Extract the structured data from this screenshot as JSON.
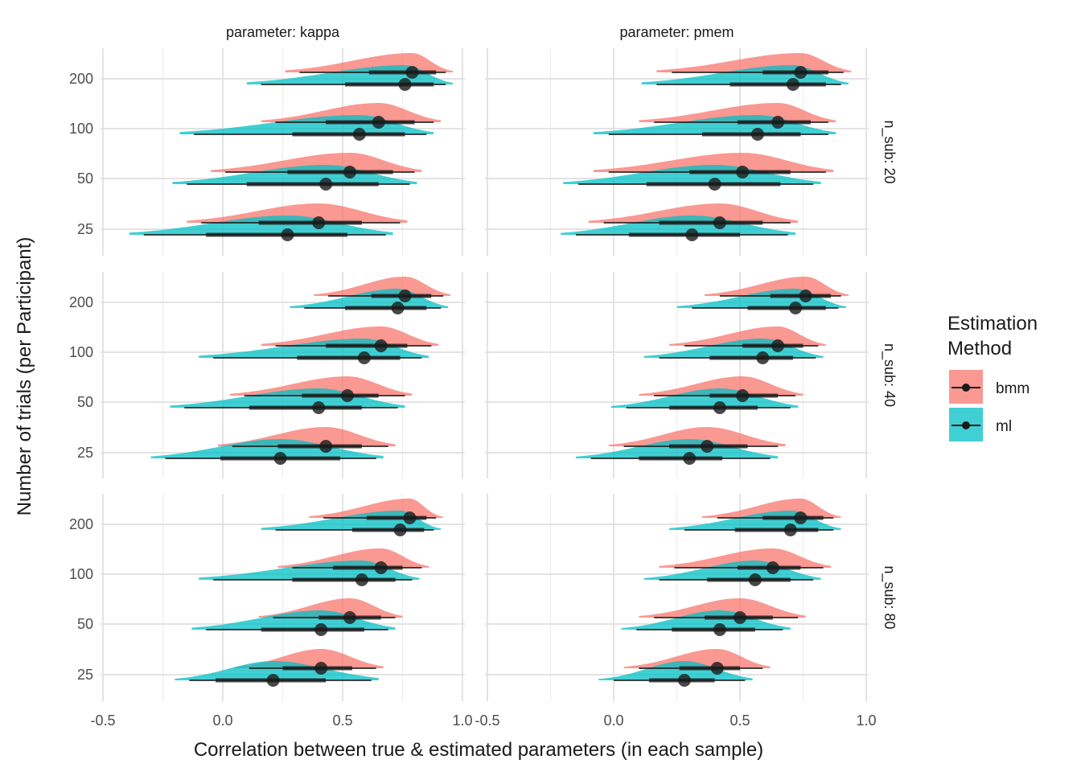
{
  "chart_data": {
    "type": "interval-density (halfeye)",
    "xlabel": "Correlation between true & estimated parameters (in each sample)",
    "ylabel": "Number of trials (per Participant)",
    "xlim": [
      -0.5,
      1.0
    ],
    "x_ticks": [
      "-0.5",
      "0.0",
      "0.5",
      "1.0"
    ],
    "x_tick_values": [
      -0.5,
      0.0,
      0.5,
      1.0
    ],
    "y_categories": [
      "200",
      "100",
      "50",
      "25"
    ],
    "facet_columns": [
      "parameter: kappa",
      "parameter: pmem"
    ],
    "facet_rows": [
      "n_sub: 20",
      "n_sub: 40",
      "n_sub: 80"
    ],
    "legend": {
      "title_lines": [
        "Estimation",
        "Method"
      ],
      "position": "right",
      "items": [
        {
          "label": "bmm",
          "color": "#F8766D"
        },
        {
          "label": "ml",
          "color": "#00BFC4"
        }
      ]
    },
    "grid": true,
    "colors": {
      "bmm": "#F8766D",
      "ml": "#00BFC4",
      "interval": "#1a1a1a",
      "grid": "#e5e5e5"
    },
    "series_summary": "Each series lists, per panel and trial count: point estimate (median) and its 66% and 95% interval in correlation units.",
    "panels": [
      {
        "column": "parameter: kappa",
        "row": "n_sub: 20",
        "rows": [
          {
            "trials": "200",
            "bmm": {
              "median": 0.79,
              "q66": [
                0.61,
                0.89
              ],
              "q95": [
                0.32,
                0.93
              ]
            },
            "ml": {
              "median": 0.76,
              "q66": [
                0.51,
                0.88
              ],
              "q95": [
                0.16,
                0.93
              ]
            }
          },
          {
            "trials": "100",
            "bmm": {
              "median": 0.65,
              "q66": [
                0.43,
                0.8
              ],
              "q95": [
                0.22,
                0.88
              ]
            },
            "ml": {
              "median": 0.57,
              "q66": [
                0.29,
                0.76
              ],
              "q95": [
                -0.12,
                0.85
              ]
            }
          },
          {
            "trials": "50",
            "bmm": {
              "median": 0.53,
              "q66": [
                0.27,
                0.71
              ],
              "q95": [
                0.01,
                0.8
              ]
            },
            "ml": {
              "median": 0.43,
              "q66": [
                0.1,
                0.65
              ],
              "q95": [
                -0.15,
                0.78
              ]
            }
          },
          {
            "trials": "25",
            "bmm": {
              "median": 0.4,
              "q66": [
                0.15,
                0.58
              ],
              "q95": [
                -0.09,
                0.74
              ]
            },
            "ml": {
              "median": 0.27,
              "q66": [
                -0.07,
                0.52
              ],
              "q95": [
                -0.33,
                0.68
              ]
            }
          }
        ]
      },
      {
        "column": "parameter: pmem",
        "row": "n_sub: 20",
        "rows": [
          {
            "trials": "200",
            "bmm": {
              "median": 0.74,
              "q66": [
                0.59,
                0.85
              ],
              "q95": [
                0.23,
                0.91
              ]
            },
            "ml": {
              "median": 0.71,
              "q66": [
                0.46,
                0.84
              ],
              "q95": [
                0.17,
                0.9
              ]
            }
          },
          {
            "trials": "100",
            "bmm": {
              "median": 0.65,
              "q66": [
                0.49,
                0.78
              ],
              "q95": [
                0.16,
                0.85
              ]
            },
            "ml": {
              "median": 0.57,
              "q66": [
                0.35,
                0.74
              ],
              "q95": [
                -0.02,
                0.85
              ]
            }
          },
          {
            "trials": "50",
            "bmm": {
              "median": 0.51,
              "q66": [
                0.3,
                0.7
              ],
              "q95": [
                -0.02,
                0.84
              ]
            },
            "ml": {
              "median": 0.4,
              "q66": [
                0.13,
                0.66
              ],
              "q95": [
                -0.14,
                0.79
              ]
            }
          },
          {
            "trials": "25",
            "bmm": {
              "median": 0.42,
              "q66": [
                0.18,
                0.59
              ],
              "q95": [
                -0.04,
                0.7
              ]
            },
            "ml": {
              "median": 0.31,
              "q66": [
                0.06,
                0.5
              ],
              "q95": [
                -0.15,
                0.69
              ]
            }
          }
        ]
      },
      {
        "column": "parameter: kappa",
        "row": "n_sub: 40",
        "rows": [
          {
            "trials": "200",
            "bmm": {
              "median": 0.76,
              "q66": [
                0.62,
                0.87
              ],
              "q95": [
                0.44,
                0.92
              ]
            },
            "ml": {
              "median": 0.73,
              "q66": [
                0.51,
                0.85
              ],
              "q95": [
                0.34,
                0.91
              ]
            }
          },
          {
            "trials": "100",
            "bmm": {
              "median": 0.66,
              "q66": [
                0.43,
                0.77
              ],
              "q95": [
                0.22,
                0.87
              ]
            },
            "ml": {
              "median": 0.59,
              "q66": [
                0.31,
                0.74
              ],
              "q95": [
                -0.04,
                0.83
              ]
            }
          },
          {
            "trials": "50",
            "bmm": {
              "median": 0.52,
              "q66": [
                0.33,
                0.65
              ],
              "q95": [
                0.09,
                0.76
              ]
            },
            "ml": {
              "median": 0.4,
              "q66": [
                0.11,
                0.58
              ],
              "q95": [
                -0.16,
                0.73
              ]
            }
          },
          {
            "trials": "25",
            "bmm": {
              "median": 0.43,
              "q66": [
                0.23,
                0.58
              ],
              "q95": [
                0.04,
                0.69
              ]
            },
            "ml": {
              "median": 0.24,
              "q66": [
                -0.01,
                0.49
              ],
              "q95": [
                -0.24,
                0.64
              ]
            }
          }
        ]
      },
      {
        "column": "parameter: pmem",
        "row": "n_sub: 40",
        "rows": [
          {
            "trials": "200",
            "bmm": {
              "median": 0.76,
              "q66": [
                0.62,
                0.86
              ],
              "q95": [
                0.42,
                0.9
              ]
            },
            "ml": {
              "median": 0.72,
              "q66": [
                0.53,
                0.84
              ],
              "q95": [
                0.31,
                0.89
              ]
            }
          },
          {
            "trials": "100",
            "bmm": {
              "median": 0.65,
              "q66": [
                0.51,
                0.75
              ],
              "q95": [
                0.28,
                0.81
              ]
            },
            "ml": {
              "median": 0.59,
              "q66": [
                0.38,
                0.71
              ],
              "q95": [
                0.18,
                0.8
              ]
            }
          },
          {
            "trials": "50",
            "bmm": {
              "median": 0.51,
              "q66": [
                0.38,
                0.65
              ],
              "q95": [
                0.16,
                0.72
              ]
            },
            "ml": {
              "median": 0.42,
              "q66": [
                0.22,
                0.57
              ],
              "q95": [
                0.05,
                0.7
              ]
            }
          },
          {
            "trials": "25",
            "bmm": {
              "median": 0.37,
              "q66": [
                0.22,
                0.53
              ],
              "q95": [
                0.04,
                0.65
              ]
            },
            "ml": {
              "median": 0.3,
              "q66": [
                0.1,
                0.43
              ],
              "q95": [
                -0.09,
                0.62
              ]
            }
          }
        ]
      },
      {
        "column": "parameter: kappa",
        "row": "n_sub: 80",
        "rows": [
          {
            "trials": "200",
            "bmm": {
              "median": 0.78,
              "q66": [
                0.6,
                0.85
              ],
              "q95": [
                0.42,
                0.89
              ]
            },
            "ml": {
              "median": 0.74,
              "q66": [
                0.54,
                0.84
              ],
              "q95": [
                0.22,
                0.88
              ]
            }
          },
          {
            "trials": "100",
            "bmm": {
              "median": 0.66,
              "q66": [
                0.46,
                0.75
              ],
              "q95": [
                0.29,
                0.83
              ]
            },
            "ml": {
              "median": 0.58,
              "q66": [
                0.29,
                0.72
              ],
              "q95": [
                -0.04,
                0.79
              ]
            }
          },
          {
            "trials": "50",
            "bmm": {
              "median": 0.53,
              "q66": [
                0.4,
                0.66
              ],
              "q95": [
                0.21,
                0.72
              ]
            },
            "ml": {
              "median": 0.41,
              "q66": [
                0.16,
                0.59
              ],
              "q95": [
                -0.07,
                0.69
              ]
            }
          },
          {
            "trials": "25",
            "bmm": {
              "median": 0.41,
              "q66": [
                0.25,
                0.54
              ],
              "q95": [
                0.11,
                0.64
              ]
            },
            "ml": {
              "median": 0.21,
              "q66": [
                -0.03,
                0.43
              ],
              "q95": [
                -0.14,
                0.62
              ]
            }
          }
        ]
      },
      {
        "column": "parameter: pmem",
        "row": "n_sub: 80",
        "rows": [
          {
            "trials": "200",
            "bmm": {
              "median": 0.74,
              "q66": [
                0.59,
                0.83
              ],
              "q95": [
                0.41,
                0.87
              ]
            },
            "ml": {
              "median": 0.7,
              "q66": [
                0.48,
                0.81
              ],
              "q95": [
                0.28,
                0.87
              ]
            }
          },
          {
            "trials": "100",
            "bmm": {
              "median": 0.63,
              "q66": [
                0.49,
                0.74
              ],
              "q95": [
                0.24,
                0.83
              ]
            },
            "ml": {
              "median": 0.56,
              "q66": [
                0.37,
                0.7
              ],
              "q95": [
                0.18,
                0.79
              ]
            }
          },
          {
            "trials": "50",
            "bmm": {
              "median": 0.5,
              "q66": [
                0.36,
                0.63
              ],
              "q95": [
                0.16,
                0.73
              ]
            },
            "ml": {
              "median": 0.42,
              "q66": [
                0.23,
                0.56
              ],
              "q95": [
                0.09,
                0.67
              ]
            }
          },
          {
            "trials": "25",
            "bmm": {
              "median": 0.41,
              "q66": [
                0.26,
                0.5
              ],
              "q95": [
                0.1,
                0.59
              ]
            },
            "ml": {
              "median": 0.28,
              "q66": [
                0.14,
                0.4
              ],
              "q95": [
                0.0,
                0.52
              ]
            }
          }
        ]
      }
    ]
  }
}
